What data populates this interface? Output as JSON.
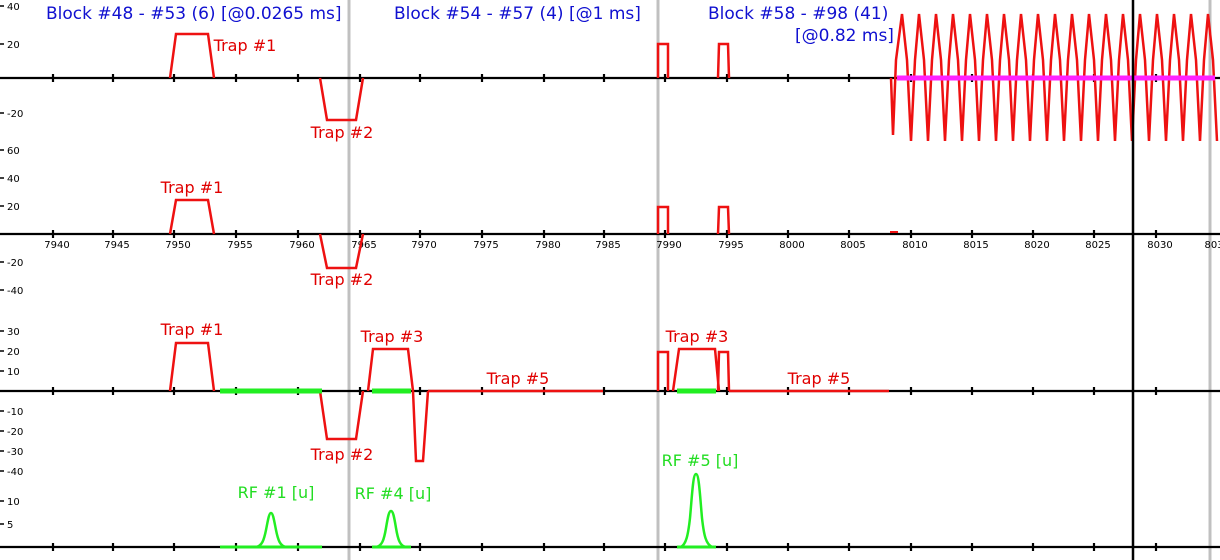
{
  "block_labels": {
    "b1": "Block #48 - #53 (6) [@0.0265 ms]",
    "b2": "Block #54 - #57 (4) [@1 ms]",
    "b3_line1": "Block #58 - #98 (41)",
    "b3_line2": "[@0.82 ms]"
  },
  "x_axis": {
    "ticks": [
      "7940",
      "7945",
      "7950",
      "7955",
      "7960",
      "7965",
      "7970",
      "7975",
      "7980",
      "7985",
      "7990",
      "7995",
      "8000",
      "8005",
      "8010",
      "8015",
      "8020",
      "8025",
      "8030",
      "803"
    ]
  },
  "lanes": {
    "gx": {
      "ticks": [
        "40",
        "20",
        "-20"
      ]
    },
    "gy": {
      "ticks": [
        "60",
        "40",
        "20",
        "-20",
        "-40"
      ]
    },
    "gz": {
      "ticks": [
        "30",
        "20",
        "10",
        "-10",
        "-20",
        "-30",
        "-40"
      ]
    },
    "rf": {
      "ticks": [
        "10",
        "5"
      ]
    }
  },
  "labels": {
    "gx_trap1": "Trap #1",
    "gx_trap2": "Trap #2",
    "gy_trap1": "Trap #1",
    "gy_trap2": "Trap #2",
    "gz_trap1": "Trap #1",
    "gz_trap2": "Trap #2",
    "gz_trap3a": "Trap #3",
    "gz_trap3b": "Trap #3",
    "gz_trap5a": "Trap #5",
    "gz_trap5b": "Trap #5",
    "rf1": "RF #1 [u]",
    "rf4": "RF #4 [u]",
    "rf5": "RF #5 [u]"
  },
  "colors": {
    "gradient": "#ee1111",
    "rf": "#22ee22",
    "readout": "#ff22ff",
    "block_text": "#1010d0",
    "block_divider": "#c0c0c0",
    "cursor": "#000000"
  }
}
